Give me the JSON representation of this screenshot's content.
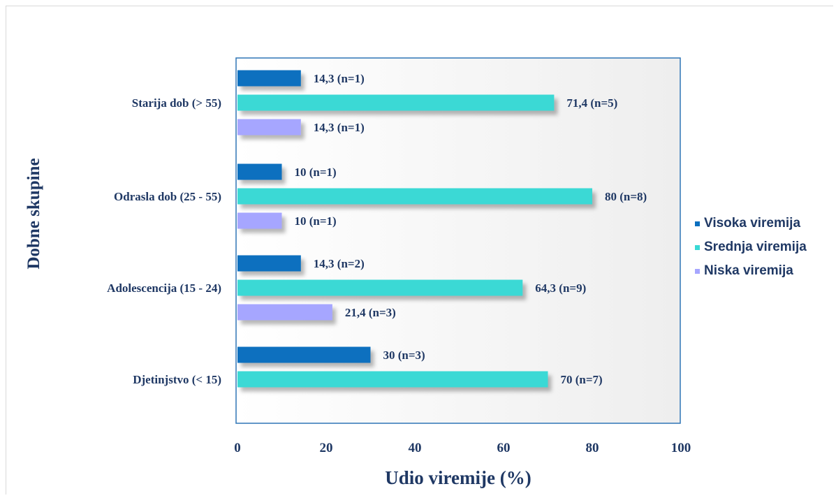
{
  "chart_data": {
    "type": "bar",
    "orientation": "horizontal",
    "title": "",
    "xlabel": "Udio viremije (%)",
    "ylabel": "Dobne skupine",
    "xlim": [
      0,
      100
    ],
    "xticks": [
      "0",
      "20",
      "40",
      "60",
      "80",
      "100"
    ],
    "grid": false,
    "legend_position": "right",
    "categories": [
      "Starija dob (> 55)",
      "Odrasla dob (25 - 55)",
      "Adolescencija (15 - 24)",
      "Djetinjstvo (< 15)"
    ],
    "series": [
      {
        "name": "Visoka viremija",
        "color": "#0b6fbf",
        "values": [
          14.3,
          10,
          14.3,
          30
        ],
        "labels": [
          "14,3 (n=1)",
          "10 (n=1)",
          "14,3 (n=2)",
          "30 (n=3)"
        ]
      },
      {
        "name": "Srednja viremija",
        "color": "#3ad9d5",
        "values": [
          71.4,
          80,
          64.3,
          70
        ],
        "labels": [
          "71,4 (n=5)",
          "80 (n=8)",
          "64,3 (n=9)",
          "70 (n=7)"
        ]
      },
      {
        "name": "Niska viremija",
        "color": "#a6a6ff",
        "values": [
          14.3,
          10,
          21.4,
          null
        ],
        "labels": [
          "14,3 (n=1)",
          "10 (n=1)",
          "21,4 (n=3)",
          ""
        ]
      }
    ]
  }
}
